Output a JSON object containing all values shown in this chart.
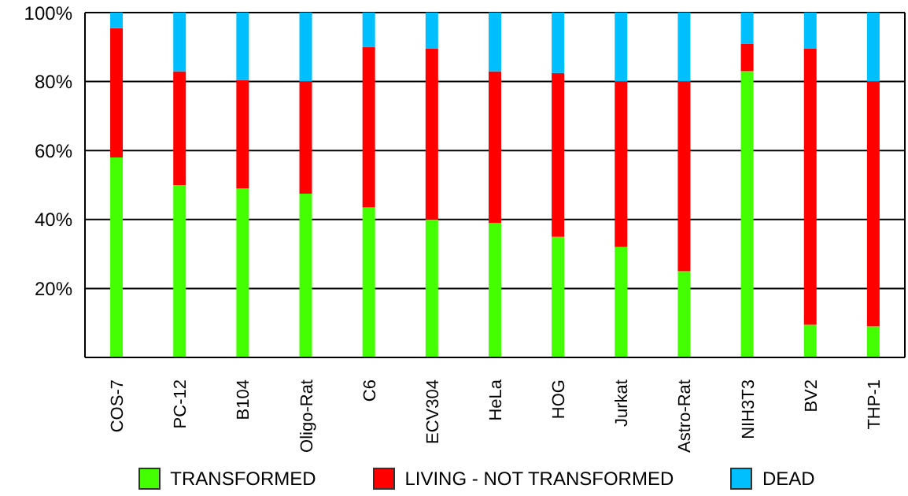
{
  "chart_data": {
    "type": "bar",
    "stacked": true,
    "categories": [
      "COS-7",
      "PC-12",
      "B104",
      "Oligo-Rat",
      "C6",
      "ECV304",
      "HeLa",
      "HOG",
      "Jurkat",
      "Astro-Rat",
      "NIH3T3",
      "BV2",
      "THP-1"
    ],
    "series": [
      {
        "name": "TRANSFORMED",
        "color": "#44ff00",
        "values": [
          58,
          50,
          49,
          47.5,
          43.5,
          40,
          39,
          35,
          32,
          25,
          83,
          9.5,
          9
        ]
      },
      {
        "name": "LIVING - NOT TRANSFORMED",
        "color": "#ff0000",
        "values": [
          37.5,
          33,
          31.5,
          32.5,
          46.5,
          49.5,
          44,
          47.5,
          48,
          55,
          8,
          80,
          71
        ]
      },
      {
        "name": "DEAD",
        "color": "#00bfff",
        "values": [
          4.5,
          17,
          19.5,
          20,
          10,
          10.5,
          17,
          17.5,
          20,
          20,
          9,
          10.5,
          20
        ]
      }
    ],
    "ylim": [
      0,
      100
    ],
    "yticks": [
      {
        "value": 0,
        "label": null
      },
      {
        "value": 20,
        "label": "20%"
      },
      {
        "value": 40,
        "label": "40%"
      },
      {
        "value": 60,
        "label": "60%"
      },
      {
        "value": 80,
        "label": "80%"
      },
      {
        "value": 100,
        "label": "100%"
      }
    ],
    "grid": "y",
    "legend": "bottom"
  }
}
